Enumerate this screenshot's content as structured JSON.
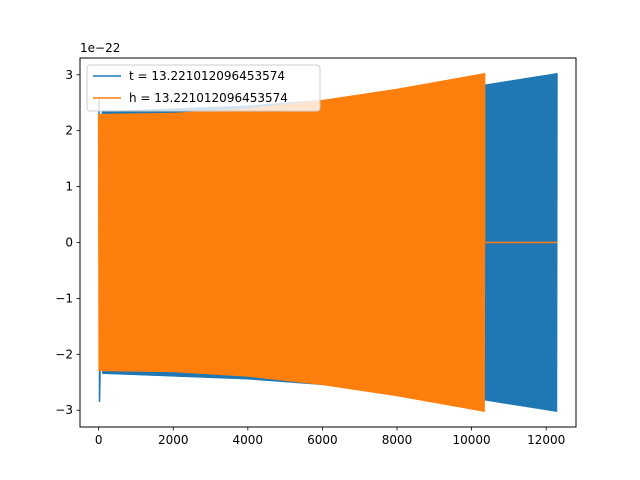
{
  "chart_data": {
    "type": "line",
    "title": "",
    "xlabel": "",
    "ylabel": "",
    "offset_label": "1e−22",
    "xlim": [
      -500,
      12800
    ],
    "ylim": [
      -3.3,
      3.3
    ],
    "xticks": [
      0,
      2000,
      4000,
      6000,
      8000,
      10000,
      12000
    ],
    "xtick_labels": [
      "0",
      "2000",
      "4000",
      "6000",
      "8000",
      "10000",
      "12000"
    ],
    "yticks": [
      -3,
      -2,
      -1,
      0,
      1,
      2,
      3
    ],
    "ytick_labels": [
      "−3",
      "−2",
      "−1",
      "0",
      "1",
      "2",
      "3"
    ],
    "grid": false,
    "legend_position": "top-left",
    "series": [
      {
        "name": "t = 13.221012096453574",
        "color": "#1f77b4",
        "x_end": 12290,
        "early_spike": {
          "x": 10,
          "max": 2.6,
          "min": -2.85
        },
        "envelope": [
          {
            "x": 100,
            "amp": 2.35
          },
          {
            "x": 4000,
            "amp": 2.45
          },
          {
            "x": 6000,
            "amp": 2.55
          },
          {
            "x": 8000,
            "amp": 2.68
          },
          {
            "x": 10300,
            "amp": 2.82
          },
          {
            "x": 12290,
            "amp": 3.03
          }
        ]
      },
      {
        "name": "h = 13.221012096453574",
        "color": "#ff7f0e",
        "x_end": 10350,
        "flat_after": {
          "x_start": 10350,
          "x_end": 12290,
          "value": 0
        },
        "envelope": [
          {
            "x": 0,
            "amp": 2.3
          },
          {
            "x": 2000,
            "amp": 2.32
          },
          {
            "x": 4000,
            "amp": 2.4
          },
          {
            "x": 6000,
            "amp": 2.55
          },
          {
            "x": 8000,
            "amp": 2.75
          },
          {
            "x": 10350,
            "amp": 3.03
          }
        ]
      }
    ]
  }
}
